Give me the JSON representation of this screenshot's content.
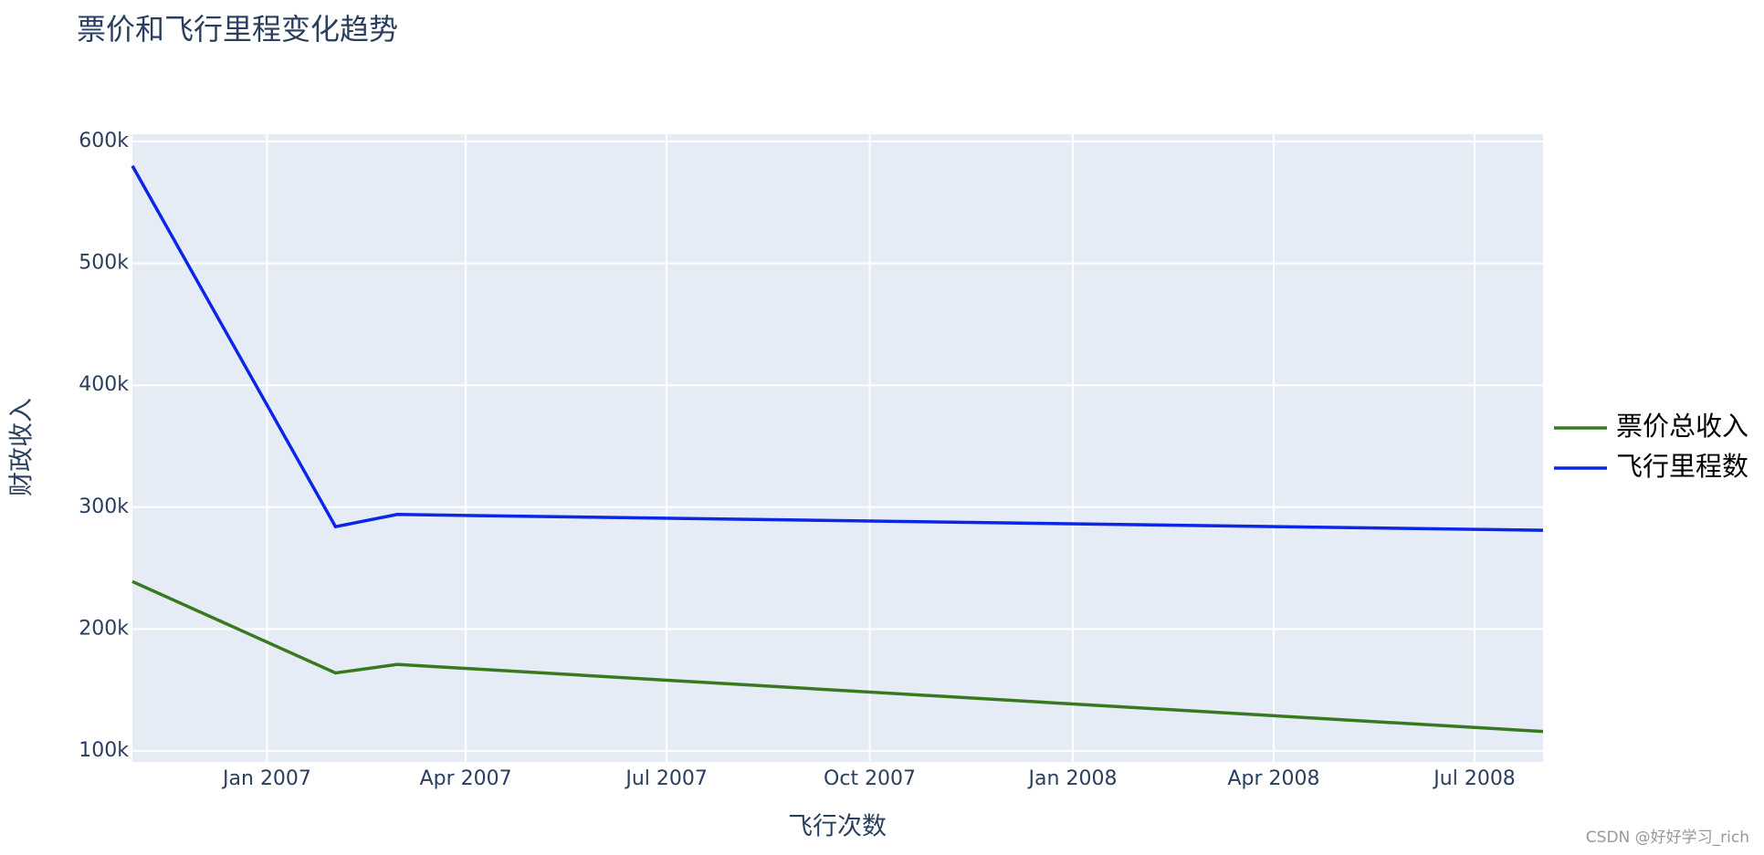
{
  "chart_data": {
    "type": "line",
    "title": "票价和飞行里程变化趋势",
    "x_label": "飞行次数",
    "y_label": "财政收入",
    "x": [
      "2006-11",
      "2007-02",
      "2007-03",
      "2008-08"
    ],
    "series": [
      {
        "name": "票价总收入",
        "color": "#38791f",
        "values": [
          239000,
          164000,
          171000,
          116000
        ]
      },
      {
        "name": "飞行里程数",
        "color": "#0b26e6",
        "values": [
          580000,
          284000,
          294000,
          281000
        ]
      }
    ],
    "xlim": [
      "2006-11",
      "2008-08"
    ],
    "xticks": [
      {
        "value": "2007-01",
        "label": "Jan 2007"
      },
      {
        "value": "2007-04",
        "label": "Apr 2007"
      },
      {
        "value": "2007-07",
        "label": "Jul 2007"
      },
      {
        "value": "2007-10",
        "label": "Oct 2007"
      },
      {
        "value": "2008-01",
        "label": "Jan 2008"
      },
      {
        "value": "2008-04",
        "label": "Apr 2008"
      },
      {
        "value": "2008-07",
        "label": "Jul 2008"
      }
    ],
    "ylim": [
      91000,
      606000
    ],
    "yticks": [
      {
        "value": 100000,
        "label": "100k"
      },
      {
        "value": 200000,
        "label": "200k"
      },
      {
        "value": 300000,
        "label": "300k"
      },
      {
        "value": 400000,
        "label": "400k"
      },
      {
        "value": 500000,
        "label": "500k"
      },
      {
        "value": 600000,
        "label": "600k"
      }
    ],
    "grid": true,
    "legend": "right",
    "background": "#e5ecf6"
  },
  "watermark": "CSDN @好好学习_rich"
}
